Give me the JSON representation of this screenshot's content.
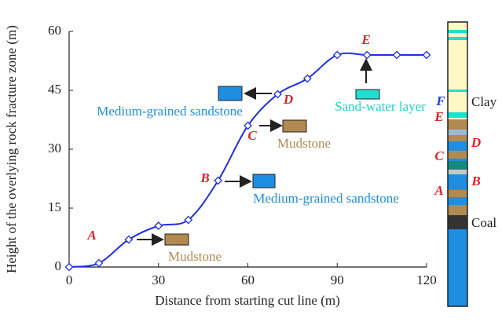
{
  "chart_data": {
    "type": "line",
    "x": [
      0,
      10,
      20,
      30,
      40,
      50,
      60,
      70,
      80,
      90,
      100,
      110,
      120
    ],
    "series": [
      {
        "color": "#1f2fe0",
        "values": [
          0,
          1,
          7,
          10.5,
          12,
          22,
          36,
          44,
          48,
          54,
          54,
          54,
          54
        ]
      }
    ],
    "xlim": [
      0,
      120
    ],
    "xticks": [
      0,
      30,
      60,
      90,
      120
    ],
    "ylim": [
      0,
      60
    ],
    "yticks": [
      0,
      15,
      30,
      45,
      60
    ],
    "xlabel": "Distance from starting cut line (m)",
    "ylabel": "Height of the overlying rock fracture zone (m)",
    "annotations": [
      {
        "text": "A",
        "color": "#e0202a"
      },
      {
        "text": "B",
        "color": "#e0202a"
      },
      {
        "text": "C",
        "color": "#e0202a"
      },
      {
        "text": "D",
        "color": "#e0202a"
      },
      {
        "text": "E",
        "color": "#e0202a"
      },
      {
        "text": "Mudstone",
        "color": "#b08a50"
      },
      {
        "text": "Medium-grained sandstone",
        "color": "#1e8fe0"
      },
      {
        "text": "Mudstone",
        "color": "#b08a50"
      },
      {
        "text": "Medium-grained sandstone",
        "color": "#1e8fe0"
      },
      {
        "text": "Sand-water layer",
        "color": "#1fd3c4"
      }
    ],
    "column_labels": [
      {
        "text": "F",
        "color": "#1e3fe0"
      },
      {
        "text": "E",
        "color": "#e0202a"
      },
      {
        "text": "D",
        "color": "#e0202a"
      },
      {
        "text": "C",
        "color": "#e0202a"
      },
      {
        "text": "B",
        "color": "#e0202a"
      },
      {
        "text": "A",
        "color": "#e0202a"
      },
      {
        "text": "Clay",
        "color": "#222222"
      },
      {
        "text": "Coal",
        "color": "#222222"
      }
    ]
  }
}
